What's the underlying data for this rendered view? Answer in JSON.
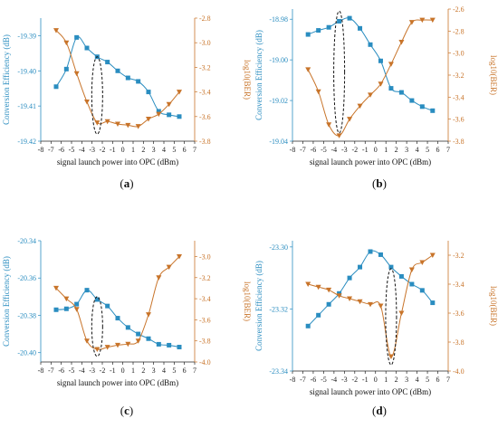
{
  "colors": {
    "conversion": "#2a8dc0",
    "ber": "#c8742a",
    "axis": "#222222"
  },
  "chart_data": [
    {
      "panel_label": "(a)",
      "panel_letter": "a",
      "type": "line",
      "xlabel": "signal launch power into OPC (dBm)",
      "ylabel_left": "Conversion Efficiency (dB)",
      "ylabel_right": "log10(BER)",
      "xlim": [
        -8,
        7
      ],
      "xticks": [
        -8,
        -7,
        -6,
        -5,
        -4,
        -3,
        -2,
        -1,
        0,
        1,
        2,
        3,
        4,
        5,
        6,
        7
      ],
      "ylim_left": [
        -19.42,
        -19.385
      ],
      "yticks_left": [
        -19.42,
        -19.41,
        -19.4,
        -19.39
      ],
      "yticklabels_left": [
        "-19.42",
        "-19.41",
        "-19.40",
        "-19.39"
      ],
      "ylim_right": [
        -3.8,
        -2.8
      ],
      "yticks_right": [
        -3.8,
        -3.6,
        -3.4,
        -3.2,
        -3.0,
        -2.8
      ],
      "yticklabels_right": [
        "-3.8",
        "-3.6",
        "-3.4",
        "-3.2",
        "-3.0",
        "-2.8"
      ],
      "series": [
        {
          "axis": "left",
          "marker": "square",
          "x": [
            -6.5,
            -5.5,
            -4.5,
            -3.5,
            -2.5,
            -1.5,
            -0.5,
            0.5,
            1.5,
            2.5,
            3.5,
            4.5,
            5.5
          ],
          "y": [
            -19.4045,
            -19.3995,
            -19.3905,
            -19.3935,
            -19.396,
            -19.3975,
            -19.4,
            -19.402,
            -19.403,
            -19.406,
            -19.4115,
            -19.4125,
            -19.413
          ]
        },
        {
          "axis": "right",
          "marker": "triangle-down",
          "x": [
            -6.5,
            -5.5,
            -4.5,
            -3.5,
            -2.5,
            -1.5,
            -0.5,
            0.5,
            1.5,
            2.5,
            3.5,
            4.5,
            5.5
          ],
          "y": [
            -2.9,
            -3.0,
            -3.25,
            -3.48,
            -3.65,
            -3.64,
            -3.66,
            -3.67,
            -3.68,
            -3.62,
            -3.58,
            -3.5,
            -3.4
          ]
        }
      ],
      "ellipse": {
        "x": -2.5,
        "y_left": [
          -19.396,
          -19.418
        ]
      }
    },
    {
      "panel_label": "(b)",
      "panel_letter": "b",
      "type": "line",
      "xlabel": "signal launch power into OPC (dBm)",
      "ylabel_left": "Conversion Efficiency (dB)",
      "ylabel_right": "log10(BER)",
      "xlim": [
        -8,
        7
      ],
      "xticks": [
        -8,
        -7,
        -6,
        -5,
        -4,
        -3,
        -2,
        -1,
        0,
        1,
        2,
        3,
        4,
        5,
        6,
        7
      ],
      "ylim_left": [
        -19.04,
        -18.975
      ],
      "yticks_left": [
        -19.04,
        -19.02,
        -19.0,
        -18.98
      ],
      "yticklabels_left": [
        "-19.04",
        "-19.02",
        "-19.00",
        "-18.98"
      ],
      "ylim_right": [
        -3.8,
        -2.6
      ],
      "yticks_right": [
        -3.8,
        -3.6,
        -3.4,
        -3.2,
        -3.0,
        -2.8,
        -2.6
      ],
      "yticklabels_right": [
        "-3.8",
        "-3.6",
        "-3.4",
        "-3.2",
        "-3.0",
        "-2.8",
        "-2.6"
      ],
      "series": [
        {
          "axis": "left",
          "marker": "square",
          "x": [
            -6.5,
            -5.5,
            -4.5,
            -3.5,
            -2.5,
            -1.5,
            -0.5,
            0.5,
            1.5,
            2.5,
            3.5,
            4.5,
            5.5
          ],
          "y": [
            -18.9875,
            -18.9855,
            -18.984,
            -18.981,
            -18.9795,
            -18.9845,
            -18.9925,
            -19.0005,
            -19.014,
            -19.016,
            -19.02,
            -19.023,
            -19.025
          ]
        },
        {
          "axis": "right",
          "marker": "triangle-down",
          "x": [
            -6.5,
            -5.5,
            -4.5,
            -3.5,
            -2.5,
            -1.5,
            -0.5,
            0.5,
            1.5,
            2.5,
            3.5,
            4.5,
            5.5
          ],
          "y": [
            -3.15,
            -3.35,
            -3.65,
            -3.75,
            -3.6,
            -3.48,
            -3.38,
            -3.28,
            -3.1,
            -2.9,
            -2.72,
            -2.7,
            -2.7
          ]
        }
      ],
      "ellipse": {
        "x": -3.5,
        "y_left": [
          -18.976,
          -19.036
        ]
      }
    },
    {
      "panel_label": "(c)",
      "panel_letter": "c",
      "type": "line",
      "xlabel": "signal launch power into OPC (dBm)",
      "ylabel_left": "Conversion Efficiency (dB)",
      "ylabel_right": "log10(BER)",
      "xlim": [
        -8,
        7
      ],
      "xticks": [
        -8,
        -7,
        -6,
        -5,
        -4,
        -3,
        -2,
        -1,
        0,
        1,
        2,
        3,
        4,
        5,
        6,
        7
      ],
      "ylim_left": [
        -20.405,
        -20.34
      ],
      "yticks_left": [
        -20.4,
        -20.38,
        -20.36,
        -20.34
      ],
      "yticklabels_left": [
        "-20.40",
        "-20.38",
        "-20.36",
        "-20.34"
      ],
      "ylim_right": [
        -4.0,
        -2.85
      ],
      "yticks_right": [
        -4.0,
        -3.8,
        -3.6,
        -3.4,
        -3.2,
        -3.0
      ],
      "yticklabels_right": [
        "-4.0",
        "-3.8",
        "-3.6",
        "-3.4",
        "-3.2",
        "-3.0"
      ],
      "series": [
        {
          "axis": "left",
          "marker": "square",
          "x": [
            -6.5,
            -5.5,
            -4.5,
            -3.5,
            -2.5,
            -1.5,
            -0.5,
            0.5,
            1.5,
            2.5,
            3.5,
            4.5,
            5.5
          ],
          "y": [
            -20.377,
            -20.3765,
            -20.374,
            -20.3665,
            -20.3715,
            -20.375,
            -20.3815,
            -20.3865,
            -20.39,
            -20.3925,
            -20.3955,
            -20.396,
            -20.397
          ]
        },
        {
          "axis": "right",
          "marker": "triangle-down",
          "x": [
            -6.5,
            -5.5,
            -4.5,
            -3.5,
            -2.5,
            -1.5,
            -0.5,
            0.5,
            1.5,
            2.5,
            3.5,
            4.5,
            5.5
          ],
          "y": [
            -3.3,
            -3.4,
            -3.5,
            -3.8,
            -3.88,
            -3.86,
            -3.84,
            -3.83,
            -3.8,
            -3.55,
            -3.2,
            -3.1,
            -3.0
          ]
        }
      ],
      "ellipse": {
        "x": -2.5,
        "y_left": [
          -20.37,
          -20.402
        ]
      }
    },
    {
      "panel_label": "(d)",
      "panel_letter": "d",
      "type": "line",
      "xlabel": "signal launch power into OPC (dBm)",
      "ylabel_left": "Conversion Efficiency (dB)",
      "ylabel_right": "log10(BER)",
      "xlim": [
        -8,
        7
      ],
      "xticks": [
        -8,
        -7,
        -6,
        -5,
        -4,
        -3,
        -2,
        -1,
        0,
        1,
        2,
        3,
        4,
        5,
        6,
        7
      ],
      "ylim_left": [
        -23.34,
        -23.298
      ],
      "yticks_left": [
        -23.34,
        -23.32,
        -23.3
      ],
      "yticklabels_left": [
        "-23.34",
        "-23.32",
        "-23.30"
      ],
      "ylim_right": [
        -4.0,
        -3.1
      ],
      "yticks_right": [
        -4.0,
        -3.8,
        -3.6,
        -3.4,
        -3.2
      ],
      "yticklabels_right": [
        "-4.0",
        "-3.8",
        "-3.6",
        "-3.4",
        "-3.2"
      ],
      "series": [
        {
          "axis": "left",
          "marker": "square",
          "x": [
            -6.5,
            -5.5,
            -4.5,
            -3.5,
            -2.5,
            -1.5,
            -0.5,
            0.5,
            1.5,
            2.5,
            3.5,
            4.5,
            5.5
          ],
          "y": [
            -23.3255,
            -23.322,
            -23.3185,
            -23.315,
            -23.31,
            -23.3065,
            -23.3015,
            -23.3025,
            -23.3065,
            -23.3095,
            -23.312,
            -23.314,
            -23.318
          ]
        },
        {
          "axis": "right",
          "marker": "triangle-down",
          "x": [
            -6.5,
            -5.5,
            -4.5,
            -3.5,
            -2.5,
            -1.5,
            -0.5,
            0.5,
            1.5,
            2.5,
            3.5,
            4.5,
            5.5
          ],
          "y": [
            -3.4,
            -3.42,
            -3.44,
            -3.48,
            -3.5,
            -3.52,
            -3.54,
            -3.55,
            -3.9,
            -3.6,
            -3.3,
            -3.25,
            -3.2
          ]
        }
      ],
      "ellipse": {
        "x": 1.5,
        "y_left": [
          -23.307,
          -23.338
        ]
      }
    }
  ]
}
